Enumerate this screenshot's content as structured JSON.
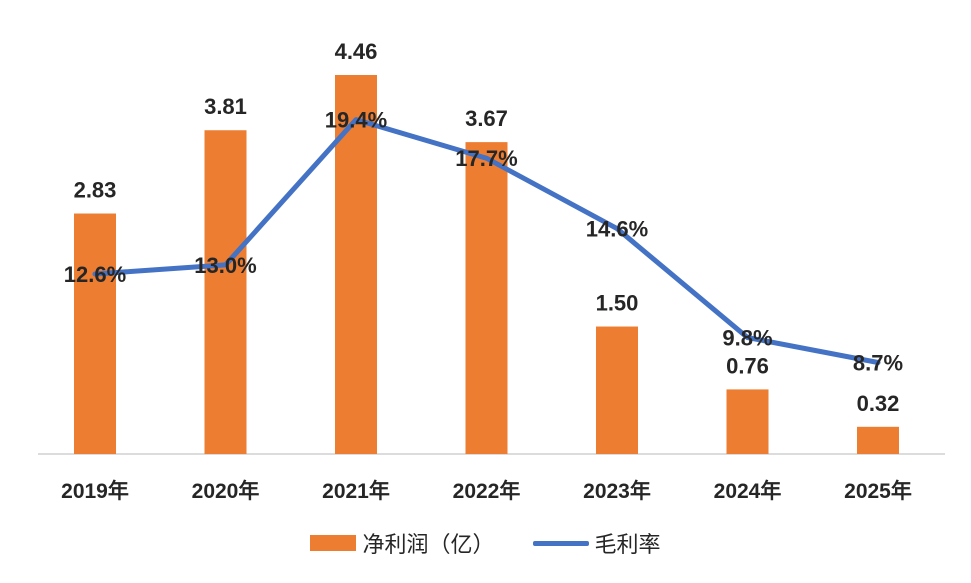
{
  "chart_data": {
    "type": "bar",
    "title": "",
    "categories": [
      "2019年",
      "2020年",
      "2021年",
      "2022年",
      "2023年",
      "2024年",
      "2025年"
    ],
    "series": [
      {
        "name": "净利润（亿）",
        "type": "bar",
        "values": [
          2.83,
          3.81,
          4.46,
          3.67,
          1.5,
          0.76,
          0.32
        ],
        "labels": [
          "2.83",
          "3.81",
          "4.46",
          "3.67",
          "1.50",
          "0.76",
          "0.32"
        ],
        "color": "#ED7D31"
      },
      {
        "name": "毛利率",
        "type": "line",
        "values": [
          12.6,
          13.0,
          19.4,
          17.7,
          14.6,
          9.8,
          8.7
        ],
        "labels": [
          "12.6%",
          "13.0%",
          "19.4%",
          "17.7%",
          "14.6%",
          "9.8%",
          "8.7%"
        ],
        "color": "#4472C4"
      }
    ],
    "ylim_bar": [
      0,
      5
    ],
    "ylim_line": [
      0,
      25
    ],
    "grid": false,
    "legend_position": "bottom"
  }
}
